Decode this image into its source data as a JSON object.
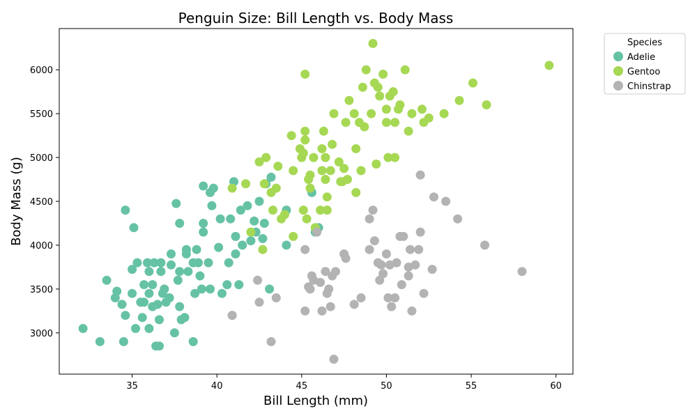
{
  "chart_data": {
    "type": "scatter",
    "title": "Penguin Size: Bill Length vs. Body Mass",
    "xlabel": "Bill Length (mm)",
    "ylabel": "Body Mass (g)",
    "xlim": [
      30.7,
      61.0
    ],
    "ylim": [
      2530,
      6470
    ],
    "xticks": [
      35,
      40,
      45,
      50,
      55,
      60
    ],
    "yticks": [
      3000,
      3500,
      4000,
      4500,
      5000,
      5500,
      6000
    ],
    "grid": false,
    "legend": {
      "title": "Species",
      "placement": "outside-top-right"
    },
    "series": [
      {
        "name": "Adelie",
        "color": "#66c2a5",
        "points": [
          [
            32.1,
            3050
          ],
          [
            33.1,
            2900
          ],
          [
            33.5,
            3600
          ],
          [
            34.0,
            3400
          ],
          [
            34.1,
            3475
          ],
          [
            34.4,
            3325
          ],
          [
            34.5,
            2900
          ],
          [
            34.6,
            3200
          ],
          [
            34.6,
            4400
          ],
          [
            35.0,
            3725
          ],
          [
            35.0,
            3450
          ],
          [
            35.1,
            4200
          ],
          [
            35.2,
            3050
          ],
          [
            35.3,
            3800
          ],
          [
            35.5,
            3350
          ],
          [
            35.6,
            3175
          ],
          [
            35.7,
            3550
          ],
          [
            35.7,
            3350
          ],
          [
            35.9,
            3800
          ],
          [
            36.0,
            3700
          ],
          [
            36.0,
            3050
          ],
          [
            36.0,
            3450
          ],
          [
            36.2,
            3550
          ],
          [
            36.2,
            3300
          ],
          [
            36.3,
            3800
          ],
          [
            36.4,
            2850
          ],
          [
            36.5,
            3325
          ],
          [
            36.6,
            3150
          ],
          [
            36.6,
            2850
          ],
          [
            36.7,
            3700
          ],
          [
            36.7,
            3800
          ],
          [
            36.8,
            3450
          ],
          [
            36.9,
            3500
          ],
          [
            37.0,
            3350
          ],
          [
            37.2,
            3400
          ],
          [
            37.3,
            3900
          ],
          [
            37.3,
            3775
          ],
          [
            37.5,
            3000
          ],
          [
            37.6,
            4475
          ],
          [
            37.7,
            3600
          ],
          [
            37.8,
            3300
          ],
          [
            37.8,
            3700
          ],
          [
            37.8,
            4250
          ],
          [
            37.9,
            3150
          ],
          [
            38.1,
            3175
          ],
          [
            38.2,
            3950
          ],
          [
            38.2,
            3900
          ],
          [
            38.3,
            3700
          ],
          [
            38.6,
            3800
          ],
          [
            38.6,
            2900
          ],
          [
            38.7,
            3450
          ],
          [
            38.8,
            3950
          ],
          [
            38.9,
            3800
          ],
          [
            39.0,
            3650
          ],
          [
            39.1,
            3500
          ],
          [
            39.2,
            4675
          ],
          [
            39.2,
            4250
          ],
          [
            39.2,
            4150
          ],
          [
            39.5,
            3800
          ],
          [
            39.6,
            3500
          ],
          [
            39.6,
            4600
          ],
          [
            39.7,
            4450
          ],
          [
            39.8,
            4650
          ],
          [
            40.1,
            3975
          ],
          [
            40.2,
            4300
          ],
          [
            40.3,
            3450
          ],
          [
            40.6,
            3550
          ],
          [
            40.7,
            3800
          ],
          [
            40.8,
            4300
          ],
          [
            40.9,
            3200
          ],
          [
            41.0,
            4725
          ],
          [
            41.1,
            4100
          ],
          [
            41.1,
            3900
          ],
          [
            41.3,
            3550
          ],
          [
            41.4,
            4400
          ],
          [
            41.5,
            4000
          ],
          [
            41.8,
            4450
          ],
          [
            42.0,
            4050
          ],
          [
            42.2,
            4275
          ],
          [
            42.3,
            4150
          ],
          [
            42.5,
            4500
          ],
          [
            42.7,
            4075
          ],
          [
            42.8,
            4250
          ],
          [
            42.9,
            4700
          ],
          [
            43.1,
            3500
          ],
          [
            43.2,
            4775
          ],
          [
            44.1,
            4400
          ],
          [
            44.1,
            4000
          ],
          [
            45.6,
            4600
          ],
          [
            45.8,
            4150
          ],
          [
            46.0,
            4200
          ]
        ]
      },
      {
        "name": "Gentoo",
        "color": "#a6d854",
        "points": [
          [
            40.9,
            4650
          ],
          [
            41.7,
            4700
          ],
          [
            42.0,
            4150
          ],
          [
            42.5,
            4950
          ],
          [
            42.7,
            3950
          ],
          [
            42.8,
            4700
          ],
          [
            42.9,
            5000
          ],
          [
            43.2,
            4600
          ],
          [
            43.3,
            4400
          ],
          [
            43.5,
            4650
          ],
          [
            43.6,
            4900
          ],
          [
            43.8,
            4300
          ],
          [
            44.0,
            4350
          ],
          [
            44.4,
            5250
          ],
          [
            44.5,
            4850
          ],
          [
            44.5,
            4100
          ],
          [
            44.9,
            5100
          ],
          [
            45.0,
            5000
          ],
          [
            45.1,
            5050
          ],
          [
            45.1,
            4400
          ],
          [
            45.2,
            5950
          ],
          [
            45.2,
            5300
          ],
          [
            45.2,
            5200
          ],
          [
            45.3,
            4300
          ],
          [
            45.4,
            4750
          ],
          [
            45.5,
            4800
          ],
          [
            45.5,
            4650
          ],
          [
            45.7,
            5000
          ],
          [
            45.8,
            4200
          ],
          [
            46.1,
            4400
          ],
          [
            46.2,
            5100
          ],
          [
            46.2,
            4850
          ],
          [
            46.3,
            5300
          ],
          [
            46.4,
            4750
          ],
          [
            46.4,
            5000
          ],
          [
            46.5,
            4550
          ],
          [
            46.5,
            4400
          ],
          [
            46.7,
            4850
          ],
          [
            46.8,
            5150
          ],
          [
            46.9,
            5500
          ],
          [
            47.2,
            4950
          ],
          [
            47.3,
            4725
          ],
          [
            47.4,
            4725
          ],
          [
            47.5,
            4875
          ],
          [
            47.6,
            5400
          ],
          [
            47.7,
            4750
          ],
          [
            47.8,
            5650
          ],
          [
            48.1,
            5500
          ],
          [
            48.2,
            4600
          ],
          [
            48.2,
            5100
          ],
          [
            48.4,
            5400
          ],
          [
            48.5,
            4850
          ],
          [
            48.6,
            5800
          ],
          [
            48.7,
            5350
          ],
          [
            48.8,
            6000
          ],
          [
            49.1,
            5500
          ],
          [
            49.2,
            6300
          ],
          [
            49.3,
            5850
          ],
          [
            49.4,
            4925
          ],
          [
            49.5,
            5800
          ],
          [
            49.6,
            5700
          ],
          [
            49.8,
            5950
          ],
          [
            50.0,
            5550
          ],
          [
            50.0,
            5400
          ],
          [
            50.1,
            5000
          ],
          [
            50.2,
            5700
          ],
          [
            50.4,
            5750
          ],
          [
            50.5,
            5400
          ],
          [
            50.5,
            5000
          ],
          [
            50.7,
            5550
          ],
          [
            50.8,
            5600
          ],
          [
            51.1,
            6000
          ],
          [
            51.3,
            5300
          ],
          [
            51.5,
            5500
          ],
          [
            52.1,
            5550
          ],
          [
            52.2,
            5400
          ],
          [
            52.5,
            5450
          ],
          [
            53.4,
            5500
          ],
          [
            54.3,
            5650
          ],
          [
            55.1,
            5850
          ],
          [
            55.9,
            5600
          ],
          [
            59.6,
            6050
          ]
        ]
      },
      {
        "name": "Chinstrap",
        "color": "#b3b3b3",
        "points": [
          [
            40.9,
            3200
          ],
          [
            42.4,
            3600
          ],
          [
            42.5,
            3350
          ],
          [
            43.2,
            2900
          ],
          [
            43.5,
            3400
          ],
          [
            45.2,
            3250
          ],
          [
            45.2,
            3950
          ],
          [
            45.4,
            3525
          ],
          [
            45.5,
            3500
          ],
          [
            45.6,
            3650
          ],
          [
            45.7,
            3600
          ],
          [
            45.9,
            4150
          ],
          [
            46.1,
            3575
          ],
          [
            46.2,
            3250
          ],
          [
            46.4,
            3700
          ],
          [
            46.5,
            3450
          ],
          [
            46.6,
            3500
          ],
          [
            46.7,
            3300
          ],
          [
            46.8,
            3650
          ],
          [
            46.9,
            2700
          ],
          [
            47.0,
            3700
          ],
          [
            47.5,
            3900
          ],
          [
            47.6,
            3850
          ],
          [
            48.1,
            3325
          ],
          [
            48.5,
            3400
          ],
          [
            49.0,
            4300
          ],
          [
            49.0,
            3950
          ],
          [
            49.2,
            4400
          ],
          [
            49.3,
            4050
          ],
          [
            49.5,
            3800
          ],
          [
            49.6,
            3600
          ],
          [
            49.7,
            3775
          ],
          [
            49.8,
            3675
          ],
          [
            50.0,
            3900
          ],
          [
            50.1,
            3400
          ],
          [
            50.2,
            3775
          ],
          [
            50.3,
            3300
          ],
          [
            50.5,
            3400
          ],
          [
            50.6,
            3800
          ],
          [
            50.8,
            4100
          ],
          [
            50.9,
            3550
          ],
          [
            51.0,
            4100
          ],
          [
            51.3,
            3650
          ],
          [
            51.3,
            3750
          ],
          [
            51.4,
            3950
          ],
          [
            51.5,
            3250
          ],
          [
            51.7,
            3775
          ],
          [
            51.9,
            3950
          ],
          [
            52.0,
            4800
          ],
          [
            52.0,
            4150
          ],
          [
            52.2,
            3450
          ],
          [
            52.7,
            3725
          ],
          [
            52.8,
            4550
          ],
          [
            53.5,
            4500
          ],
          [
            54.2,
            4300
          ],
          [
            55.8,
            4000
          ],
          [
            58.0,
            3700
          ]
        ]
      }
    ]
  }
}
